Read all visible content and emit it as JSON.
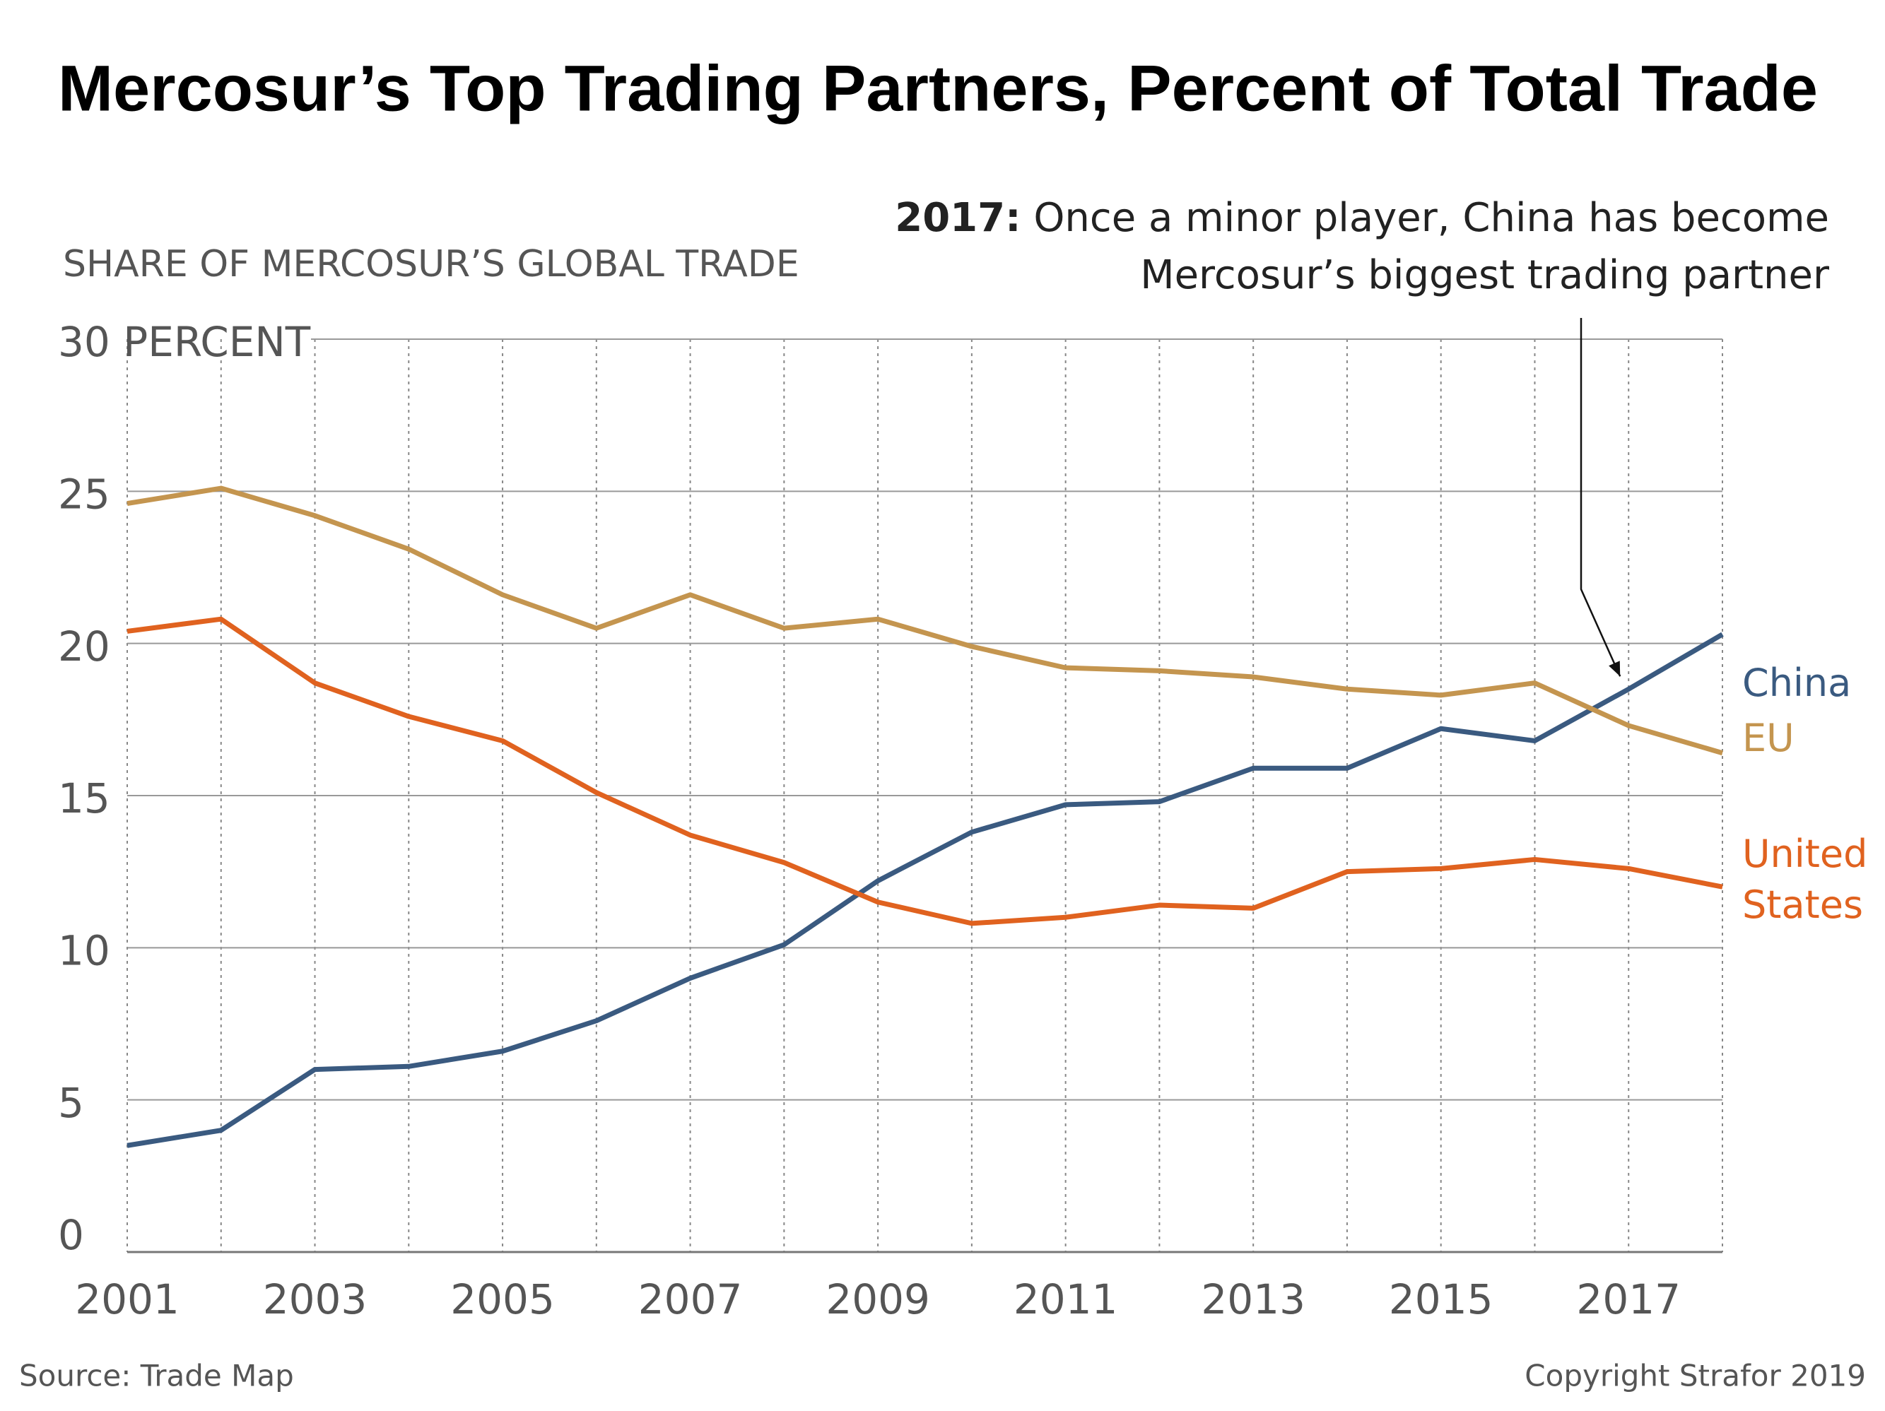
{
  "chart_data": {
    "type": "line",
    "title": "Mercosur’s Top Trading Partners, Percent of Total Trade",
    "y_axis_label": "SHARE OF MERCOSUR’S GLOBAL TRADE",
    "annotation": {
      "lead": "2017:",
      "lines": [
        "Once a minor player, China has become",
        "Mercosur’s biggest trading partner"
      ]
    },
    "source": "Source: Trade Map",
    "copyright": "Copyright Strafor 2019",
    "x": [
      2001,
      2002,
      2003,
      2004,
      2005,
      2006,
      2007,
      2008,
      2009,
      2010,
      2011,
      2012,
      2013,
      2014,
      2015,
      2016,
      2017,
      2018
    ],
    "xlim": [
      2001,
      2018
    ],
    "xticks": [
      2001,
      2003,
      2005,
      2007,
      2009,
      2011,
      2013,
      2015,
      2017
    ],
    "ylim": [
      0,
      30
    ],
    "yticks": [
      0,
      5,
      10,
      15,
      20,
      25,
      {
        "value": 30,
        "label": "30 PERCENT"
      }
    ],
    "grid": true,
    "series": [
      {
        "name": "China",
        "color": "#3a5a80",
        "values": [
          3.5,
          4.0,
          6.0,
          6.1,
          6.6,
          7.6,
          9.0,
          10.1,
          12.2,
          13.8,
          14.7,
          14.8,
          15.9,
          15.9,
          17.2,
          16.8,
          18.5,
          20.3
        ]
      },
      {
        "name": "EU",
        "color": "#c4954f",
        "values": [
          24.6,
          25.1,
          24.2,
          23.1,
          21.6,
          20.5,
          21.6,
          20.5,
          20.8,
          19.9,
          19.2,
          19.1,
          18.9,
          18.5,
          18.3,
          18.7,
          17.3,
          16.4
        ]
      },
      {
        "name": "United States",
        "color": "#e0621f",
        "values": [
          20.4,
          20.8,
          18.7,
          17.6,
          16.8,
          15.1,
          13.7,
          12.8,
          11.5,
          10.8,
          11.0,
          11.4,
          11.3,
          12.5,
          12.6,
          12.9,
          12.6,
          12.0
        ]
      }
    ]
  }
}
